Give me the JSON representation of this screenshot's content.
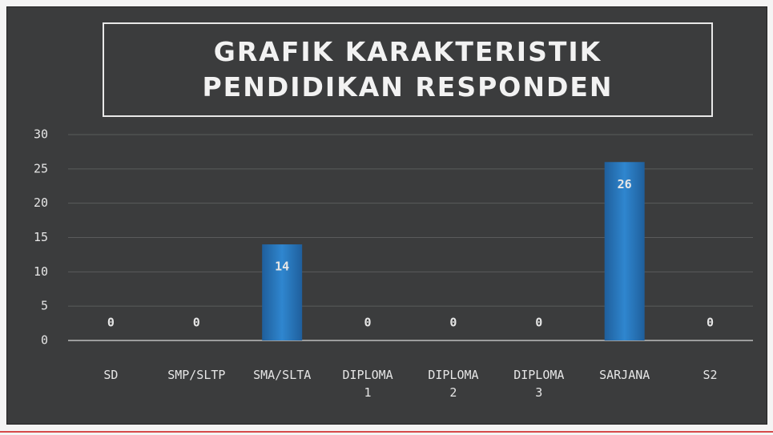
{
  "chart_data": {
    "type": "bar",
    "title": "GRAFIK KARAKTERISTIK PENDIDIKAN RESPONDEN",
    "categories": [
      "SD",
      "SMP/SLTP",
      "SMA/SLTA",
      "DIPLOMA 1",
      "DIPLOMA 2",
      "DIPLOMA 3",
      "SARJANA",
      "S2"
    ],
    "values": [
      0,
      0,
      14,
      0,
      0,
      0,
      26,
      0
    ],
    "color": "#2f86cf",
    "ylim": [
      0,
      30
    ],
    "yticks": [
      0,
      5,
      10,
      15,
      20,
      25,
      30
    ],
    "grid": true
  }
}
